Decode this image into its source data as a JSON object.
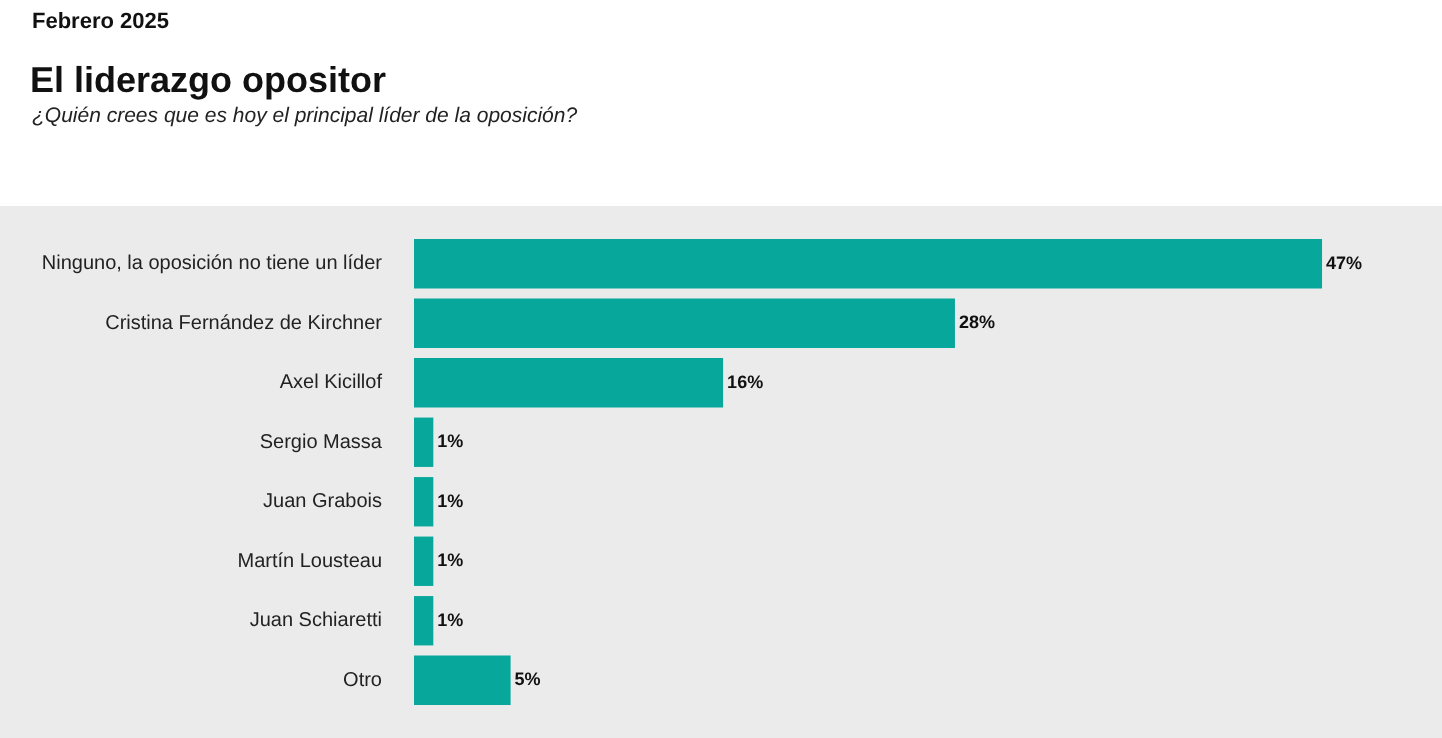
{
  "chart_data": {
    "type": "bar",
    "orientation": "horizontal",
    "title": "El liderazgo opositor",
    "subtitle": "¿Quién crees que es hoy el principal líder de la oposición?",
    "annotations": [
      "Febrero 2025"
    ],
    "categories": [
      "Ninguno, la oposición no tiene un líder",
      "Cristina Fernández de Kirchner",
      "Axel Kicillof",
      "Sergio Massa",
      "Juan Grabois",
      "Martín Lousteau",
      "Juan Schiaretti",
      "Otro"
    ],
    "values": [
      47,
      28,
      16,
      1,
      1,
      1,
      1,
      5
    ],
    "value_labels": [
      "47%",
      "28%",
      "16%",
      "1%",
      "1%",
      "1%",
      "1%",
      "5%"
    ],
    "color": "#07a89b",
    "grid": false,
    "legend": false,
    "tick_labels": "y"
  }
}
